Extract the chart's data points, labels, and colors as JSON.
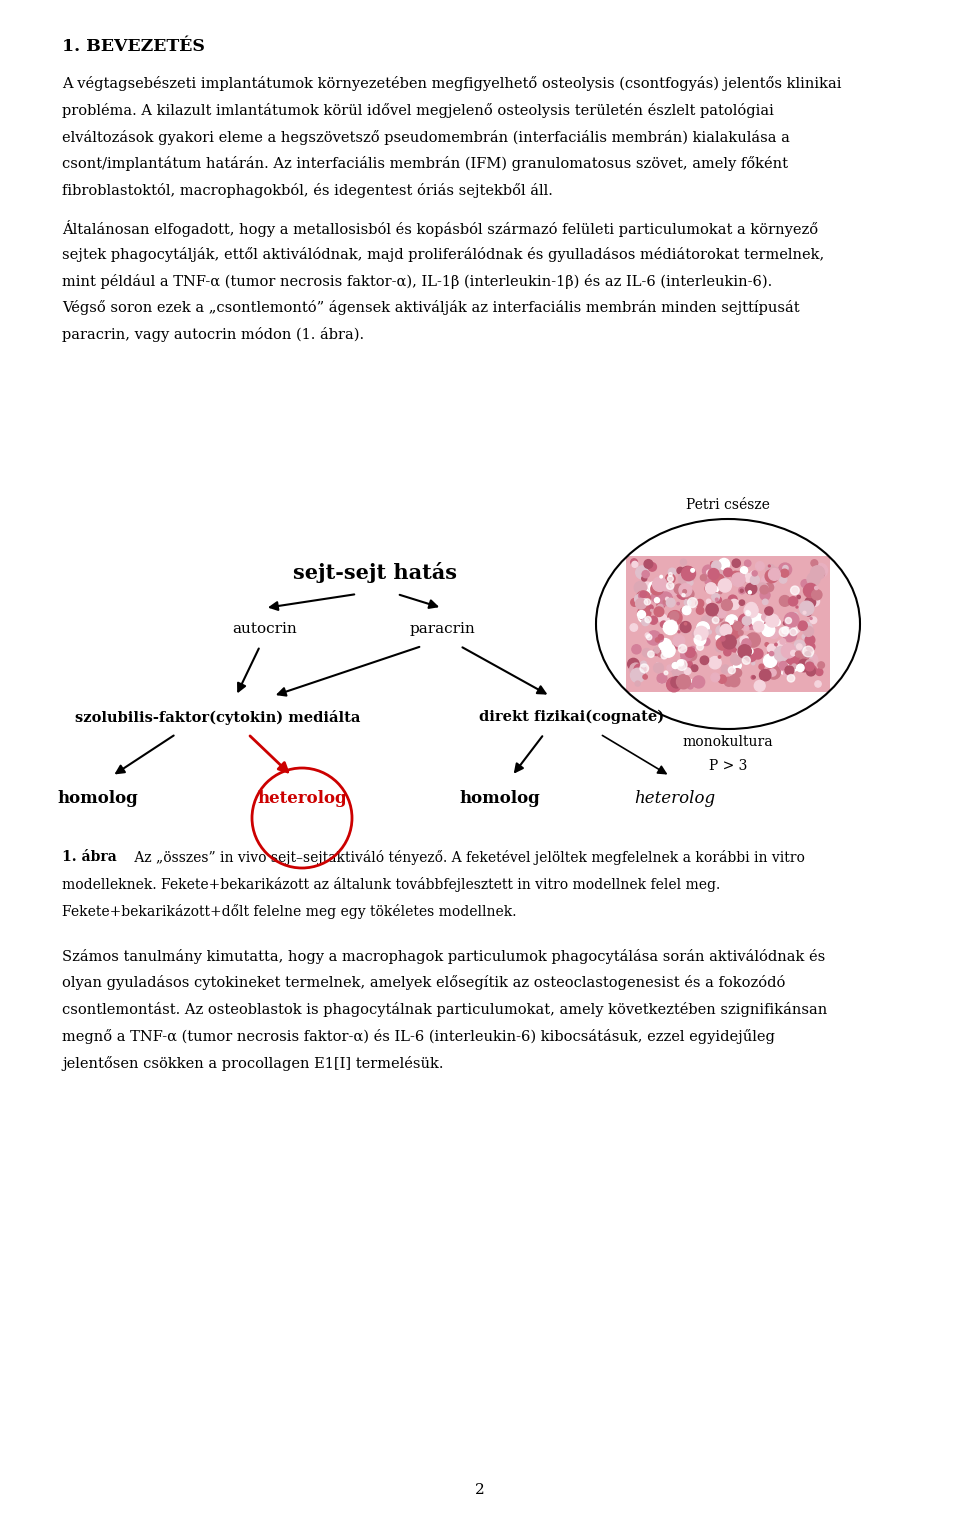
{
  "bg_color": "#ffffff",
  "page_width": 9.6,
  "page_height": 15.19,
  "title": "1. BEVEZETÉS",
  "para1_lines": [
    "A végtagsebészeti implantátumok környezetében megfigyelhető osteolysis (csontfogyás) jelentős klinikai",
    "probléma. A kilazult imlantátumok körül idővel megjelenő osteolysis területén észlelt patológiai",
    "elváltozások gyakori eleme a hegszövetsző pseudomembrán (interfaciális membrán) kialakulása a",
    "csont/implantátum határán. Az interfaciális membrán (IFM) granulomatosus szövet, amely főként",
    "fibroblastoktól, macrophagokból, és idegentest óriás sejtekből áll."
  ],
  "para2_lines": [
    "Általánosan elfogadott, hogy a metallosisból és kopásból származó felületi particulumokat a környező",
    "sejtek phagocytálják, ettől aktiválódnak, majd proliferálódnak és gyulladásos médiátorokat termelnek,",
    "mint például a TNF-α (tumor necrosis faktor-α), IL-1β (interleukin-1β) és az IL-6 (interleukin-6).",
    "Végső soron ezek a „csontlemontó” ágensek aktiválják az interfaciális membrán minden sejttípusát",
    "paracrin, vagy autocrin módon (1. ábra)."
  ],
  "diagram_title": "sejt-sejt hatás",
  "autocrin_label": "autocrin",
  "paracrin_label": "paracrin",
  "petri_label": "Petri csésze",
  "monokultura_line1": "monokultura",
  "monokultura_line2": "P > 3",
  "szolubilis_label": "szolubilis-faktor(cytokin) mediálta",
  "direkt_label": "direkt fizikai(cognate)",
  "homolog1_label": "homolog",
  "heterolog_label": "heterolog",
  "homolog2_label": "homolog",
  "heterolog2_label": "heterolog",
  "cap_bold": "1. ábra",
  "cap_normal": " Az „összes” in vivo sejt–sejtaktiváló tényező. A feketével jelöltek megfelelnek a korábbi in vitro",
  "cap_line2": "modelleknek. Fekete+bekarikázott az általunk továbbfejlesztett in vitro modellnek felel meg.",
  "cap_line3": "Fekete+bekarikázott+dőlt felelne meg egy tökéletes modellnek.",
  "para3_lines": [
    "Számos tanulmány kimutatta, hogy a macrophagok particulumok phagocytálása során aktiválódnak és",
    "olyan gyuladásos cytokineket termelnek, amelyek elősegítik az osteoclastogenesist és a fokozódó",
    "csontlemontást. Az osteoblastok is phagocytálnak particulumokat, amely következtében szignifikánsan",
    "megnő a TNF-α (tumor necrosis faktor-α) és IL-6 (interleukin-6) kibocsátásuk, ezzel egyidejűleg",
    "jelentősen csökken a procollagen E1[I] termelésük."
  ],
  "page_num": "2",
  "text_color": "#000000",
  "red_color": "#cc0000"
}
